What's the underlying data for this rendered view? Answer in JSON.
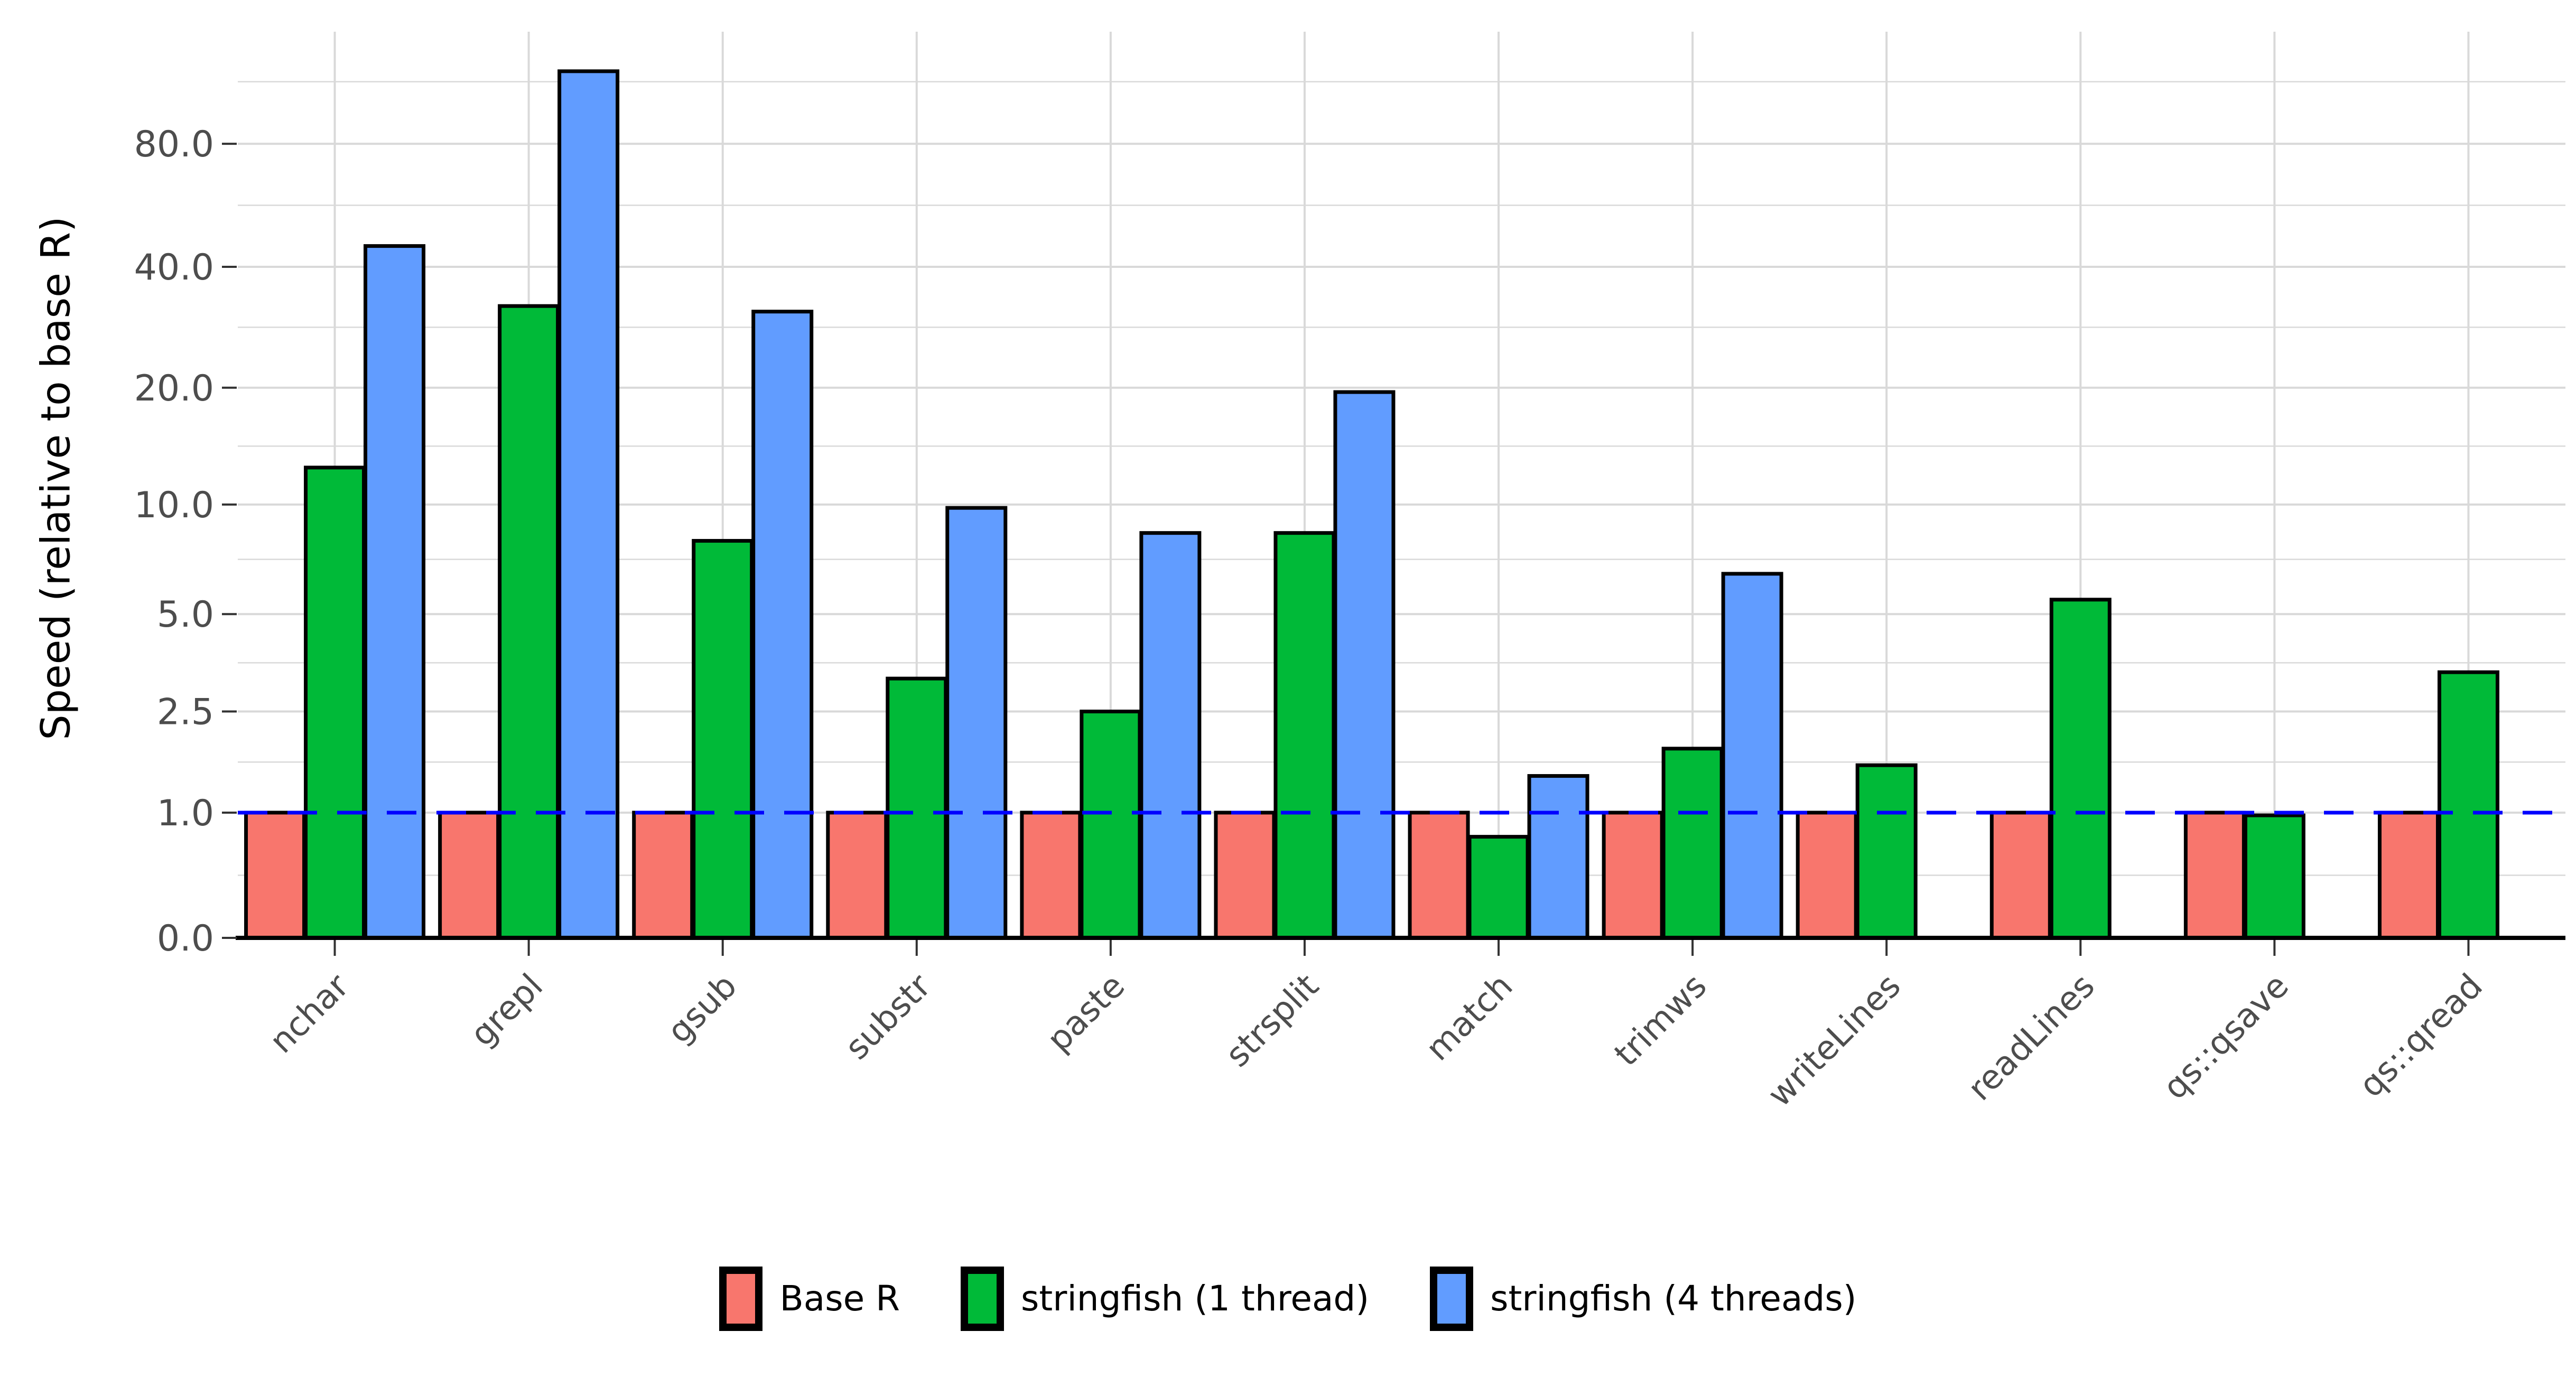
{
  "chart_data": {
    "type": "bar",
    "title": "",
    "xlabel": "",
    "ylabel": "Speed (relative to base R)",
    "scale": "log1p",
    "grid": true,
    "legend_position": "bottom",
    "categories": [
      "nchar",
      "grepl",
      "gsub",
      "substr",
      "paste",
      "strsplit",
      "match",
      "trimws",
      "writeLines",
      "readLines",
      "qs::qsave",
      "qs::qread"
    ],
    "series": [
      {
        "name": "Base R",
        "color": "#F8766D",
        "values": [
          1,
          1,
          1,
          1,
          1,
          1,
          1,
          1,
          1,
          1,
          1,
          1
        ]
      },
      {
        "name": "stringfish (1 thread)",
        "color": "#00BA38",
        "values": [
          12.5,
          32,
          8,
          3.2,
          2.5,
          8.4,
          0.75,
          1.85,
          1.6,
          5.5,
          0.97,
          3.35
        ]
      },
      {
        "name": "stringfish (4 threads)",
        "color": "#619CFF",
        "values": [
          45,
          120,
          31,
          9.8,
          8.4,
          19.5,
          1.45,
          6.5,
          null,
          null,
          null,
          null
        ]
      }
    ],
    "y_ticks": [
      {
        "value": 0,
        "label": "0.0"
      },
      {
        "value": 1,
        "label": "1.0"
      },
      {
        "value": 2.5,
        "label": "2.5"
      },
      {
        "value": 5,
        "label": "5.0"
      },
      {
        "value": 10,
        "label": "10.0"
      },
      {
        "value": 20,
        "label": "20.0"
      },
      {
        "value": 40,
        "label": "40.0"
      },
      {
        "value": 80,
        "label": "80.0"
      }
    ],
    "ylim": [
      0,
      130
    ],
    "reference_line": {
      "value": 1,
      "color": "#0000FF",
      "style": "dashed"
    }
  },
  "style": {
    "background": "#ffffff",
    "grid_color": "#d9d9d9",
    "axis_text_color": "#4d4d4d",
    "tick_color": "#333333",
    "axis_line_color": "#000000",
    "bar_outline_color": "#000000"
  }
}
